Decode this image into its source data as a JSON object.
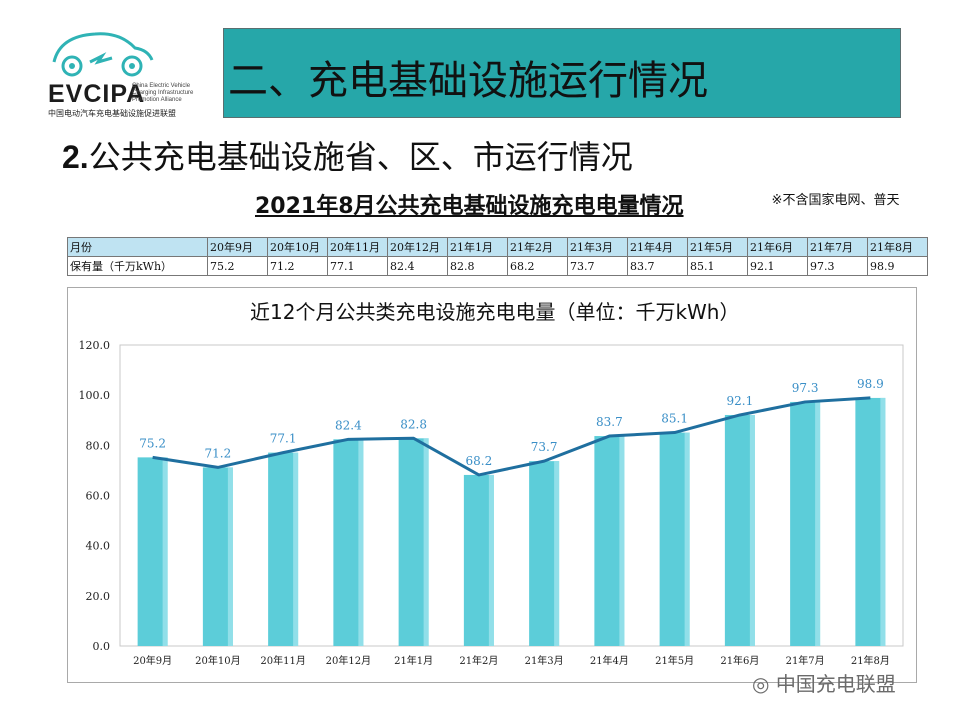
{
  "logo": {
    "name": "EVCIPA",
    "subtitle": "China Electric Vehicle Charging Infrastructure Promotion Alliance",
    "chinese_name": "中国电动汽车充电基础设施促进联盟"
  },
  "header": {
    "title": "二、充电基础设施运行情况"
  },
  "section": {
    "number": "2.",
    "title": "公共充电基础设施省、区、市运行情况"
  },
  "table": {
    "title": "2021年8月公共充电基础设施充电电量情况",
    "note": "※不含国家电网、普天",
    "row1_label": "月份",
    "row2_label": "保有量（千万kWh）",
    "months": [
      "20年9月",
      "20年10月",
      "20年11月",
      "20年12月",
      "21年1月",
      "21年2月",
      "21年3月",
      "21年4月",
      "21年5月",
      "21年6月",
      "21年7月",
      "21年8月"
    ],
    "values": [
      "75.2",
      "71.2",
      "77.1",
      "82.4",
      "82.8",
      "68.2",
      "73.7",
      "83.7",
      "85.1",
      "92.1",
      "97.3",
      "98.9"
    ]
  },
  "watermark": "中国充电联盟",
  "colors": {
    "title_bar": "#26a7a9",
    "bar": "#5ccdd9",
    "line": "#1f6f9f",
    "data_label": "#3a8fc7",
    "table_header": "#bfe3f2"
  },
  "chart_data": {
    "type": "bar",
    "title": "近12个月公共类充电设施充电电量（单位：千万kWh）",
    "categories": [
      "20年9月",
      "20年10月",
      "20年11月",
      "20年12月",
      "21年1月",
      "21年2月",
      "21年3月",
      "21年4月",
      "21年5月",
      "21年6月",
      "21年7月",
      "21年8月"
    ],
    "values": [
      75.2,
      71.2,
      77.1,
      82.4,
      82.8,
      68.2,
      73.7,
      83.7,
      85.1,
      92.1,
      97.3,
      98.9
    ],
    "overlay": "line",
    "ylim": [
      0,
      120
    ],
    "yticks": [
      "0.0",
      "20.0",
      "40.0",
      "60.0",
      "80.0",
      "100.0",
      "120.0"
    ],
    "data_labels": [
      "75.2",
      "71.2",
      "77.1",
      "82.4",
      "82.8",
      "68.2",
      "73.7",
      "83.7",
      "85.1",
      "92.1",
      "97.3",
      "98.9"
    ],
    "grid": false,
    "legend": "none"
  }
}
